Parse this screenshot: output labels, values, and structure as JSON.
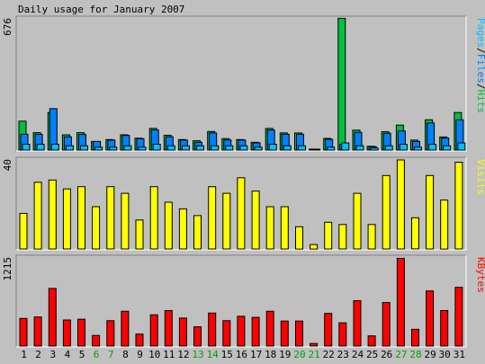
{
  "title": "Daily usage for January 2007",
  "colors": {
    "background": "#c0c0c0",
    "hits": "#00c040",
    "files": "#0080ff",
    "pages": "#00c0ff",
    "visits": "#ffff00",
    "kbytes": "#ff0000",
    "weekday": "#000000",
    "weekend": "#00a000"
  },
  "chart_data": [
    {
      "type": "bar",
      "panel": "hits-files-pages",
      "ymax_label": "676",
      "ylim": [
        0,
        676
      ],
      "legend": [
        {
          "text": "Pages",
          "color": "#00c0ff"
        },
        {
          "text": "/",
          "color": "#000000"
        },
        {
          "text": "Files",
          "color": "#0080ff"
        },
        {
          "text": "/",
          "color": "#000000"
        },
        {
          "text": "Hits",
          "color": "#00c040"
        }
      ],
      "categories": [
        "1",
        "2",
        "3",
        "4",
        "5",
        "6",
        "7",
        "8",
        "9",
        "10",
        "11",
        "12",
        "13",
        "14",
        "15",
        "16",
        "17",
        "18",
        "19",
        "20",
        "21",
        "22",
        "23",
        "24",
        "25",
        "26",
        "27",
        "28",
        "29",
        "30",
        "31"
      ],
      "series": [
        {
          "name": "Hits",
          "values": [
            148,
            89,
            192,
            78,
            89,
            44,
            54,
            78,
            61,
            111,
            76,
            54,
            48,
            95,
            59,
            54,
            40,
            111,
            88,
            88,
            5,
            60,
            674,
            102,
            20,
            94,
            128,
            51,
            155,
            67,
            192
          ]
        },
        {
          "name": "Files",
          "values": [
            81,
            81,
            212,
            68,
            80,
            44,
            51,
            75,
            58,
            103,
            68,
            51,
            40,
            88,
            52,
            51,
            37,
            103,
            81,
            81,
            4,
            55,
            30,
            91,
            18,
            86,
            98,
            44,
            139,
            62,
            155
          ]
        },
        {
          "name": "Pages",
          "values": [
            30,
            30,
            30,
            22,
            22,
            15,
            15,
            22,
            15,
            30,
            22,
            22,
            22,
            22,
            22,
            22,
            15,
            30,
            22,
            22,
            3,
            15,
            37,
            22,
            11,
            22,
            30,
            15,
            30,
            22,
            37
          ]
        }
      ]
    },
    {
      "type": "bar",
      "panel": "visits",
      "ymax_label": "40",
      "ylim": [
        0,
        40
      ],
      "legend": [
        {
          "text": "Visits",
          "color": "#ffff00"
        }
      ],
      "categories": [
        "1",
        "2",
        "3",
        "4",
        "5",
        "6",
        "7",
        "8",
        "9",
        "10",
        "11",
        "12",
        "13",
        "14",
        "15",
        "16",
        "17",
        "18",
        "19",
        "20",
        "21",
        "22",
        "23",
        "24",
        "25",
        "26",
        "27",
        "28",
        "29",
        "30",
        "31"
      ],
      "series": [
        {
          "name": "Visits",
          "values": [
            16,
            30,
            31,
            27,
            28,
            19,
            28,
            25,
            13,
            28,
            21,
            18,
            15,
            28,
            25,
            32,
            26,
            19,
            19,
            10,
            2,
            12,
            11,
            25,
            11,
            33,
            40,
            14,
            33,
            22,
            39
          ]
        }
      ]
    },
    {
      "type": "bar",
      "panel": "kbytes",
      "ymax_label": "1215",
      "ylim": [
        0,
        1215
      ],
      "legend": [
        {
          "text": "KBytes",
          "color": "#ff0000"
        }
      ],
      "categories": [
        "1",
        "2",
        "3",
        "4",
        "5",
        "6",
        "7",
        "8",
        "9",
        "10",
        "11",
        "12",
        "13",
        "14",
        "15",
        "16",
        "17",
        "18",
        "19",
        "20",
        "21",
        "22",
        "23",
        "24",
        "25",
        "26",
        "27",
        "28",
        "29",
        "30",
        "31"
      ],
      "series": [
        {
          "name": "KBytes",
          "values": [
            380,
            400,
            795,
            360,
            370,
            145,
            350,
            480,
            165,
            430,
            490,
            385,
            265,
            455,
            350,
            410,
            395,
            480,
            345,
            345,
            35,
            450,
            320,
            625,
            140,
            600,
            1210,
            230,
            760,
            490,
            810
          ]
        }
      ]
    }
  ],
  "xaxis": {
    "labels": [
      "1",
      "2",
      "3",
      "4",
      "5",
      "6",
      "7",
      "8",
      "9",
      "10",
      "11",
      "12",
      "13",
      "14",
      "15",
      "16",
      "17",
      "18",
      "19",
      "20",
      "21",
      "22",
      "23",
      "24",
      "25",
      "26",
      "27",
      "28",
      "29",
      "30",
      "31"
    ],
    "weekend_days": [
      "6",
      "7",
      "13",
      "14",
      "20",
      "21",
      "27",
      "28"
    ]
  }
}
